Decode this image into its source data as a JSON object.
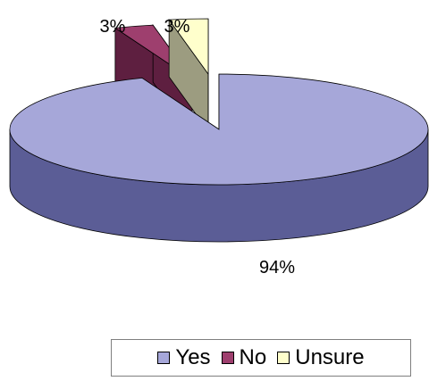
{
  "chart_data": {
    "type": "pie",
    "style": "3d-exploded",
    "categories": [
      "Yes",
      "No",
      "Unsure"
    ],
    "values": [
      94,
      3,
      3
    ],
    "data_labels": [
      "94%",
      "3%",
      "3%"
    ],
    "colors": {
      "Yes": "#a6a7d9",
      "No": "#9e3f6e",
      "Unsure": "#ffffcc"
    },
    "side_colors": {
      "Yes": "#5b5d96",
      "No": "#5e1f40",
      "Unsure": "#9c9c80"
    },
    "legend": {
      "position": "bottom-right",
      "entries": [
        "Yes",
        "No",
        "Unsure"
      ]
    }
  }
}
